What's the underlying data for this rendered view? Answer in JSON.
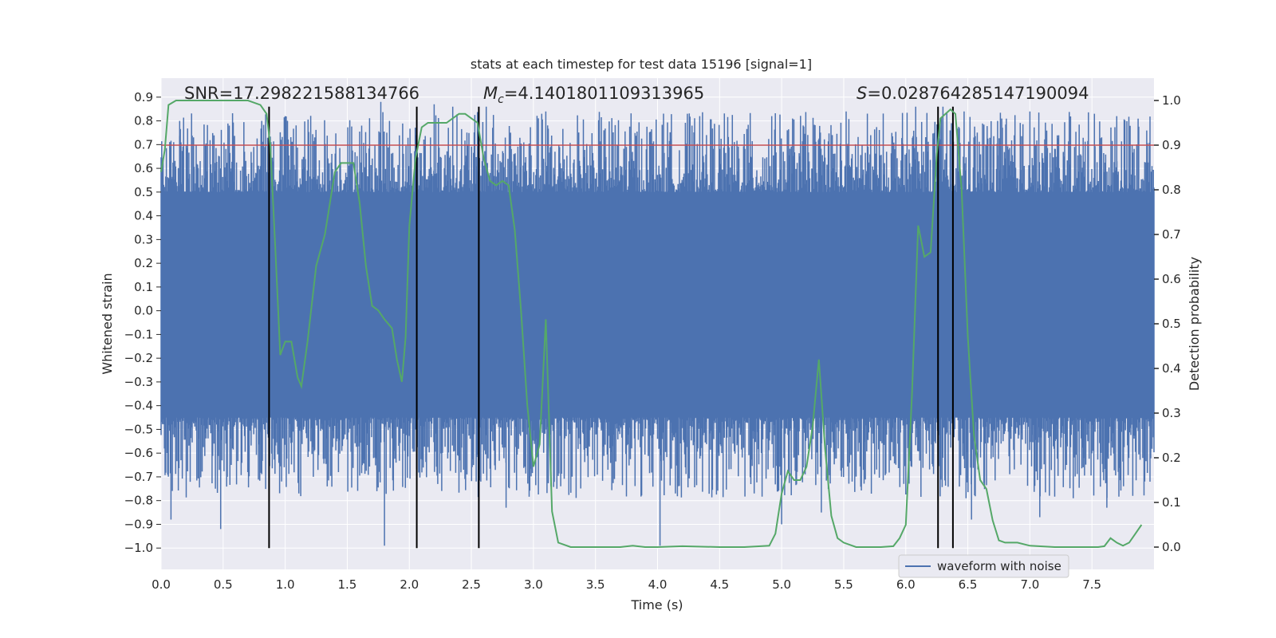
{
  "chart_data": {
    "type": "line",
    "title": "stats at each timestep for test data 15196 [signal=1]",
    "xlabel": "Time (s)",
    "ylabel_left": "Whitened strain",
    "ylabel_right": "Detection probability",
    "xlim": [
      0.0,
      8.0
    ],
    "ylim_left": [
      -1.09,
      0.98
    ],
    "ylim_right": [
      -0.05,
      1.05
    ],
    "x_ticks": [
      "0.0",
      "0.5",
      "1.0",
      "1.5",
      "2.0",
      "2.5",
      "3.0",
      "3.5",
      "4.0",
      "4.5",
      "5.0",
      "5.5",
      "6.0",
      "6.5",
      "7.0",
      "7.5"
    ],
    "y_left_ticks": [
      "0.9",
      "0.8",
      "0.7",
      "0.6",
      "0.5",
      "0.4",
      "0.3",
      "0.2",
      "0.1",
      "0.0",
      "−0.1",
      "−0.2",
      "−0.3",
      "−0.4",
      "−0.5",
      "−0.6",
      "−0.7",
      "−0.8",
      "−0.9",
      "−1.0"
    ],
    "y_right_ticks": [
      "1.0",
      "0.9",
      "0.8",
      "0.7",
      "0.6",
      "0.5",
      "0.4",
      "0.3",
      "0.2",
      "0.1",
      "0.0"
    ],
    "annotations": {
      "snr": "SNR=17.298221588134766",
      "mc_symbol": "M",
      "mc_sub": "c",
      "mc_value": "=4.1401801109313965",
      "s_symbol": "S",
      "s_value": "=0.028764285147190094"
    },
    "threshold_probability": 0.9,
    "vertical_markers": [
      0.87,
      2.06,
      2.56,
      6.26,
      6.38
    ],
    "waveform": {
      "name": "waveform with noise",
      "color": "#4c72b0",
      "envelope_upper": 0.5,
      "envelope_lower": -0.45,
      "peak_spikes": [
        {
          "t": 0.08,
          "v": -0.88
        },
        {
          "t": 0.15,
          "v": 0.8
        },
        {
          "t": 0.48,
          "v": -0.92
        },
        {
          "t": 1.0,
          "v": 0.82
        },
        {
          "t": 1.11,
          "v": -0.77
        },
        {
          "t": 1.77,
          "v": 0.88
        },
        {
          "t": 1.8,
          "v": -0.99
        },
        {
          "t": 2.2,
          "v": 0.87
        },
        {
          "t": 2.35,
          "v": 0.86
        },
        {
          "t": 2.62,
          "v": 0.86
        },
        {
          "t": 2.78,
          "v": -0.83
        },
        {
          "t": 3.1,
          "v": 0.84
        },
        {
          "t": 3.22,
          "v": -0.74
        },
        {
          "t": 4.02,
          "v": -0.99
        },
        {
          "t": 4.34,
          "v": 0.82
        },
        {
          "t": 4.92,
          "v": 0.82
        },
        {
          "t": 5.0,
          "v": -0.9
        },
        {
          "t": 5.32,
          "v": -0.85
        },
        {
          "t": 5.52,
          "v": 0.84
        },
        {
          "t": 6.08,
          "v": 0.86
        },
        {
          "t": 6.3,
          "v": 0.86
        },
        {
          "t": 6.47,
          "v": 0.84
        },
        {
          "t": 6.53,
          "v": -0.88
        },
        {
          "t": 6.74,
          "v": 0.8
        },
        {
          "t": 7.0,
          "v": 0.84
        },
        {
          "t": 7.08,
          "v": -0.87
        },
        {
          "t": 7.35,
          "v": -0.79
        },
        {
          "t": 7.52,
          "v": 0.83
        },
        {
          "t": 7.62,
          "v": -0.83
        },
        {
          "t": 7.7,
          "v": 0.82
        }
      ]
    },
    "probability": {
      "color": "#55a868",
      "t": [
        0.0,
        0.03,
        0.06,
        0.12,
        0.3,
        0.5,
        0.7,
        0.8,
        0.85,
        0.88,
        0.92,
        0.96,
        1.0,
        1.05,
        1.1,
        1.13,
        1.18,
        1.25,
        1.32,
        1.4,
        1.45,
        1.5,
        1.55,
        1.6,
        1.65,
        1.7,
        1.75,
        1.8,
        1.86,
        1.9,
        1.94,
        1.97,
        2.0,
        2.05,
        2.1,
        2.15,
        2.2,
        2.3,
        2.4,
        2.45,
        2.5,
        2.55,
        2.6,
        2.65,
        2.7,
        2.75,
        2.8,
        2.85,
        2.9,
        2.95,
        3.0,
        3.05,
        3.1,
        3.15,
        3.2,
        3.3,
        3.5,
        3.7,
        3.8,
        3.9,
        4.0,
        4.2,
        4.5,
        4.7,
        4.9,
        4.95,
        5.0,
        5.05,
        5.1,
        5.15,
        5.2,
        5.25,
        5.3,
        5.35,
        5.4,
        5.45,
        5.5,
        5.55,
        5.6,
        5.7,
        5.8,
        5.9,
        5.95,
        6.0,
        6.05,
        6.1,
        6.15,
        6.2,
        6.25,
        6.28,
        6.32,
        6.36,
        6.4,
        6.45,
        6.5,
        6.55,
        6.6,
        6.65,
        6.7,
        6.75,
        6.8,
        6.9,
        7.0,
        7.2,
        7.4,
        7.55,
        7.6,
        7.65,
        7.7,
        7.75,
        7.8,
        7.85,
        7.9
      ],
      "p": [
        0.84,
        0.89,
        0.99,
        1.0,
        1.0,
        1.0,
        1.0,
        0.99,
        0.97,
        0.9,
        0.67,
        0.43,
        0.46,
        0.46,
        0.38,
        0.36,
        0.46,
        0.63,
        0.7,
        0.84,
        0.86,
        0.86,
        0.86,
        0.77,
        0.63,
        0.54,
        0.53,
        0.51,
        0.49,
        0.42,
        0.37,
        0.47,
        0.72,
        0.87,
        0.94,
        0.95,
        0.95,
        0.95,
        0.97,
        0.97,
        0.96,
        0.95,
        0.87,
        0.82,
        0.81,
        0.82,
        0.81,
        0.71,
        0.53,
        0.32,
        0.18,
        0.23,
        0.51,
        0.08,
        0.01,
        0.0,
        0.0,
        0.0,
        0.003,
        0.0,
        0.0,
        0.002,
        0.0,
        0.0,
        0.003,
        0.03,
        0.12,
        0.17,
        0.15,
        0.15,
        0.18,
        0.27,
        0.42,
        0.22,
        0.07,
        0.02,
        0.01,
        0.005,
        0.0,
        0.0,
        0.0,
        0.002,
        0.02,
        0.05,
        0.34,
        0.72,
        0.65,
        0.66,
        0.88,
        0.96,
        0.97,
        0.98,
        0.97,
        0.8,
        0.47,
        0.25,
        0.15,
        0.13,
        0.06,
        0.015,
        0.01,
        0.01,
        0.003,
        0.0,
        0.0,
        0.0,
        0.002,
        0.02,
        0.01,
        0.003,
        0.01,
        0.03,
        0.05
      ]
    }
  }
}
